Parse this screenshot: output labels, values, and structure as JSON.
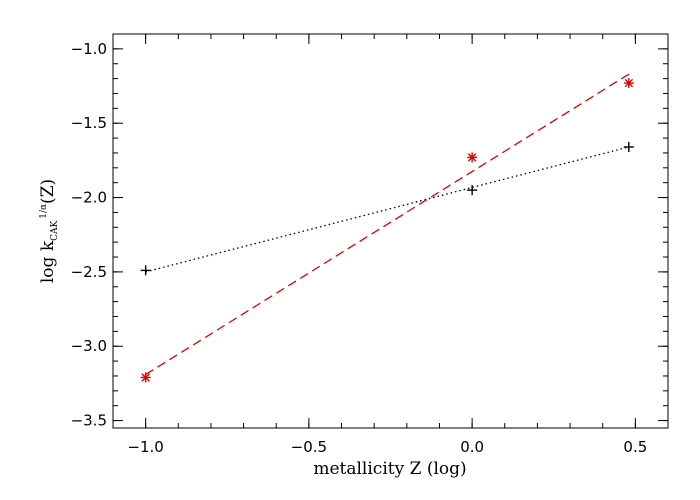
{
  "chart_data": {
    "type": "scatter",
    "xlabel": "metallicity Z (log)",
    "ylabel": {
      "prefix": "log  k",
      "subscript": "CAK",
      "superscript": "1/α",
      "suffix": "(Z)"
    },
    "xlim": [
      -1.1,
      0.6
    ],
    "ylim": [
      -3.55,
      -0.9
    ],
    "x_ticks": [
      -1.0,
      -0.5,
      0.0,
      0.5
    ],
    "x_tick_labels": [
      "−1.0",
      "−0.5",
      "0.0",
      "0.5"
    ],
    "y_ticks": [
      -3.5,
      -3.0,
      -2.5,
      -2.0,
      -1.5,
      -1.0
    ],
    "y_tick_labels": [
      "−3.5",
      "−3.0",
      "−2.5",
      "−2.0",
      "−1.5",
      "−1.0"
    ],
    "x_minor_step": 0.1,
    "y_minor_step": 0.1,
    "grid": false,
    "series": [
      {
        "marker": "plus",
        "color": "#000000",
        "points": [
          [
            -1.0,
            -2.49
          ],
          [
            0.0,
            -1.95
          ],
          [
            0.48,
            -1.66
          ]
        ],
        "fit_line": {
          "style": "dotted",
          "x": [
            -1.0,
            0.48
          ],
          "y": [
            -2.5,
            -1.66
          ]
        }
      },
      {
        "marker": "asterisk",
        "color": "#e00000",
        "points": [
          [
            -1.0,
            -3.21
          ],
          [
            0.0,
            -1.73
          ],
          [
            0.48,
            -1.23
          ]
        ],
        "fit_line": {
          "style": "dashed",
          "x": [
            -1.0,
            0.48
          ],
          "y": [
            -3.19,
            -1.17
          ]
        }
      }
    ]
  }
}
